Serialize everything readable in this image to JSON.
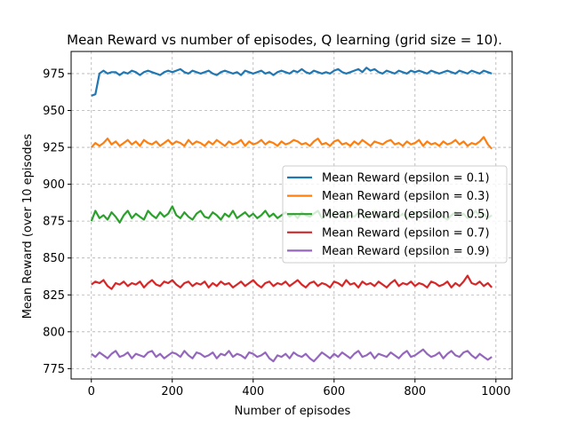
{
  "chart_data": {
    "type": "line",
    "title": "Mean Reward vs number of episodes, Q learning (grid size = 10).",
    "xlabel": "Number of episodes",
    "ylabel": "Mean Reward (over 10 episodes",
    "xlim": [
      -50,
      1040
    ],
    "ylim": [
      768,
      990
    ],
    "xticks": [
      0,
      200,
      400,
      600,
      800,
      1000
    ],
    "yticks": [
      775,
      800,
      825,
      850,
      875,
      900,
      925,
      950,
      975
    ],
    "grid": true,
    "legend_position": "center-right",
    "x": [
      0,
      10,
      20,
      30,
      40,
      50,
      60,
      70,
      80,
      90,
      100,
      110,
      120,
      130,
      140,
      150,
      160,
      170,
      180,
      190,
      200,
      210,
      220,
      230,
      240,
      250,
      260,
      270,
      280,
      290,
      300,
      310,
      320,
      330,
      340,
      350,
      360,
      370,
      380,
      390,
      400,
      410,
      420,
      430,
      440,
      450,
      460,
      470,
      480,
      490,
      500,
      510,
      520,
      530,
      540,
      550,
      560,
      570,
      580,
      590,
      600,
      610,
      620,
      630,
      640,
      650,
      660,
      670,
      680,
      690,
      700,
      710,
      720,
      730,
      740,
      750,
      760,
      770,
      780,
      790,
      800,
      810,
      820,
      830,
      840,
      850,
      860,
      870,
      880,
      890,
      900,
      910,
      920,
      930,
      940,
      950,
      960,
      970,
      980,
      990
    ],
    "series": [
      {
        "name": "Mean Reward (epsilon = 0.1)",
        "color": "#1f77b4",
        "values": [
          960,
          961,
          975,
          977,
          975,
          976,
          976,
          974,
          976,
          975,
          977,
          976,
          974,
          976,
          977,
          976,
          975,
          974,
          976,
          977,
          976,
          977,
          978,
          976,
          975,
          977,
          976,
          975,
          976,
          977,
          975,
          974,
          976,
          977,
          976,
          975,
          976,
          974,
          977,
          976,
          975,
          976,
          977,
          975,
          976,
          974,
          976,
          977,
          976,
          975,
          977,
          976,
          978,
          976,
          975,
          977,
          976,
          975,
          976,
          975,
          977,
          978,
          976,
          975,
          976,
          977,
          978,
          976,
          979,
          977,
          978,
          976,
          975,
          977,
          976,
          975,
          977,
          976,
          975,
          977,
          976,
          977,
          976,
          975,
          977,
          976,
          975,
          976,
          977,
          976,
          975,
          977,
          976,
          975,
          977,
          976,
          975,
          977,
          976,
          975
        ]
      },
      {
        "name": "Mean Reward (epsilon = 0.3)",
        "color": "#ff7f0e",
        "values": [
          925,
          928,
          926,
          928,
          931,
          927,
          929,
          926,
          928,
          930,
          927,
          929,
          926,
          930,
          928,
          927,
          929,
          926,
          928,
          930,
          927,
          929,
          928,
          926,
          930,
          927,
          929,
          928,
          926,
          929,
          927,
          930,
          928,
          926,
          929,
          927,
          928,
          930,
          926,
          929,
          927,
          928,
          930,
          927,
          929,
          928,
          926,
          929,
          927,
          928,
          930,
          929,
          927,
          928,
          926,
          929,
          931,
          927,
          928,
          926,
          929,
          930,
          927,
          928,
          926,
          929,
          927,
          930,
          928,
          926,
          929,
          928,
          927,
          929,
          930,
          927,
          928,
          926,
          929,
          927,
          928,
          930,
          926,
          929,
          927,
          928,
          926,
          929,
          927,
          928,
          930,
          927,
          929,
          926,
          928,
          927,
          929,
          932,
          927,
          924
        ]
      },
      {
        "name": "Mean Reward (epsilon = 0.5)",
        "color": "#2ca02c",
        "values": [
          875,
          882,
          877,
          879,
          876,
          881,
          878,
          874,
          879,
          882,
          877,
          880,
          878,
          876,
          882,
          879,
          877,
          881,
          878,
          880,
          885,
          879,
          877,
          881,
          878,
          876,
          880,
          882,
          878,
          877,
          881,
          879,
          876,
          880,
          878,
          882,
          877,
          879,
          881,
          878,
          880,
          877,
          879,
          882,
          878,
          880,
          877,
          879,
          881,
          878,
          880,
          877,
          881,
          879,
          878,
          880,
          882,
          877,
          879,
          881,
          878,
          880,
          882,
          877,
          879,
          878,
          881,
          880,
          877,
          879,
          882,
          878,
          880,
          877,
          879,
          881,
          878,
          880,
          877,
          879,
          881,
          878,
          880,
          882,
          877,
          879,
          880,
          878,
          876,
          879,
          881,
          878,
          880,
          877,
          879,
          882,
          878,
          880,
          877,
          879
        ]
      },
      {
        "name": "Mean Reward (epsilon = 0.7)",
        "color": "#d62728",
        "values": [
          832,
          834,
          833,
          835,
          831,
          829,
          833,
          832,
          834,
          831,
          833,
          832,
          834,
          830,
          833,
          835,
          832,
          831,
          834,
          833,
          835,
          832,
          830,
          833,
          834,
          831,
          833,
          832,
          834,
          830,
          833,
          831,
          834,
          832,
          833,
          830,
          832,
          834,
          831,
          833,
          835,
          832,
          830,
          833,
          834,
          831,
          833,
          832,
          834,
          831,
          833,
          835,
          832,
          830,
          833,
          834,
          831,
          833,
          832,
          830,
          834,
          833,
          831,
          835,
          832,
          833,
          830,
          834,
          832,
          833,
          831,
          834,
          832,
          830,
          833,
          835,
          831,
          833,
          832,
          834,
          831,
          833,
          832,
          830,
          834,
          833,
          831,
          832,
          834,
          830,
          833,
          831,
          834,
          838,
          833,
          832,
          834,
          831,
          833,
          830
        ]
      },
      {
        "name": "Mean Reward (epsilon = 0.9)",
        "color": "#9467bd",
        "values": [
          785,
          783,
          786,
          784,
          782,
          785,
          787,
          783,
          784,
          786,
          782,
          785,
          784,
          783,
          786,
          787,
          783,
          785,
          782,
          784,
          786,
          785,
          783,
          787,
          784,
          782,
          786,
          785,
          783,
          784,
          786,
          782,
          785,
          784,
          787,
          783,
          785,
          784,
          782,
          786,
          785,
          783,
          784,
          786,
          782,
          780,
          784,
          783,
          785,
          782,
          786,
          784,
          783,
          785,
          782,
          780,
          783,
          786,
          784,
          782,
          785,
          783,
          786,
          784,
          782,
          785,
          787,
          783,
          784,
          786,
          782,
          785,
          784,
          783,
          786,
          784,
          782,
          785,
          787,
          783,
          784,
          786,
          788,
          785,
          783,
          784,
          786,
          782,
          785,
          787,
          784,
          783,
          786,
          787,
          784,
          782,
          785,
          783,
          781,
          783
        ]
      }
    ]
  }
}
